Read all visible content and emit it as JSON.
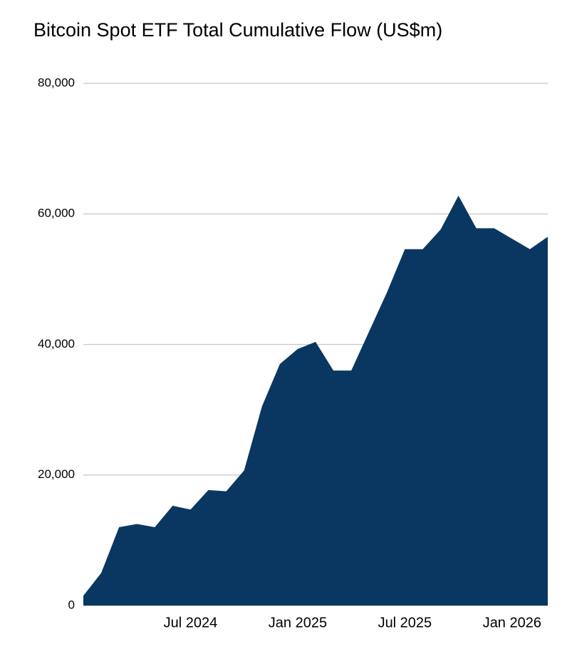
{
  "chart_data": {
    "type": "area",
    "title": "Bitcoin Spot ETF Total Cumulative Flow (US$m)",
    "color": "#0a3762",
    "grid": true,
    "x": [
      "2024-01",
      "2024-02",
      "2024-03",
      "2024-04",
      "2024-05",
      "2024-06",
      "2024-07",
      "2024-08",
      "2024-09",
      "2024-10",
      "2024-11",
      "2024-12",
      "2025-01",
      "2025-02",
      "2025-03",
      "2025-04",
      "2025-05",
      "2025-06",
      "2025-07",
      "2025-08",
      "2025-09",
      "2025-10",
      "2025-11",
      "2025-12",
      "2026-01",
      "2026-02",
      "2026-03"
    ],
    "values": [
      1500,
      5000,
      12000,
      12500,
      12000,
      15300,
      14700,
      17700,
      17500,
      20700,
      30500,
      37000,
      39300,
      40400,
      36000,
      36000,
      42000,
      48000,
      54600,
      54600,
      57600,
      62800,
      57800,
      57800,
      56200,
      54600,
      56500
    ],
    "xlim": [
      "2024-01",
      "2026-03"
    ],
    "xticks": [
      {
        "value": "2024-07",
        "label": "Jul 2024"
      },
      {
        "value": "2025-01",
        "label": "Jan 2025"
      },
      {
        "value": "2025-07",
        "label": "Jul 2025"
      },
      {
        "value": "2026-01",
        "label": "Jan 2026"
      }
    ],
    "ylim": [
      0,
      80000
    ],
    "yticks": [
      0,
      {
        "value": 20000,
        "label": "20,000"
      },
      {
        "value": 40000,
        "label": "40,000"
      },
      {
        "value": 60000,
        "label": "60,000"
      },
      {
        "value": 80000,
        "label": "80,000"
      }
    ]
  }
}
